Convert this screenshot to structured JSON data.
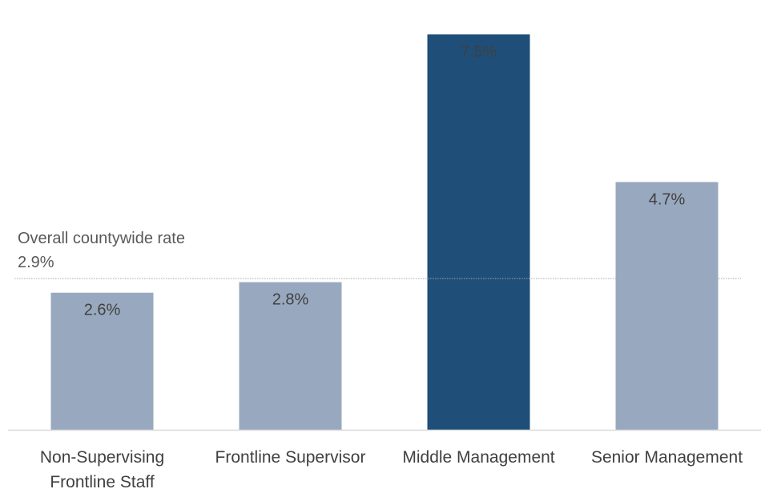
{
  "chart_data": {
    "type": "bar",
    "categories": [
      [
        "Non-Supervising",
        "Frontline Staff"
      ],
      [
        "Frontline Supervisor"
      ],
      [
        "Middle Management"
      ],
      [
        "Senior Management"
      ]
    ],
    "values": [
      2.6,
      2.8,
      7.5,
      4.7
    ],
    "value_labels": [
      "2.6%",
      "2.8%",
      "7.5%",
      "4.7%"
    ],
    "highlight_index": 2,
    "ylim": [
      0,
      7.5
    ],
    "reference_line": {
      "value": 2.9,
      "label_line1": "Overall countywide rate",
      "label_line2": "2.9%"
    },
    "colors": {
      "bar": "#98a9bf",
      "highlight": "#1f4e79",
      "axis": "#d9d9d9",
      "reference": "#a6a6a6",
      "text": "#404040"
    },
    "title": "",
    "xlabel": "",
    "ylabel": "",
    "grid": false
  }
}
